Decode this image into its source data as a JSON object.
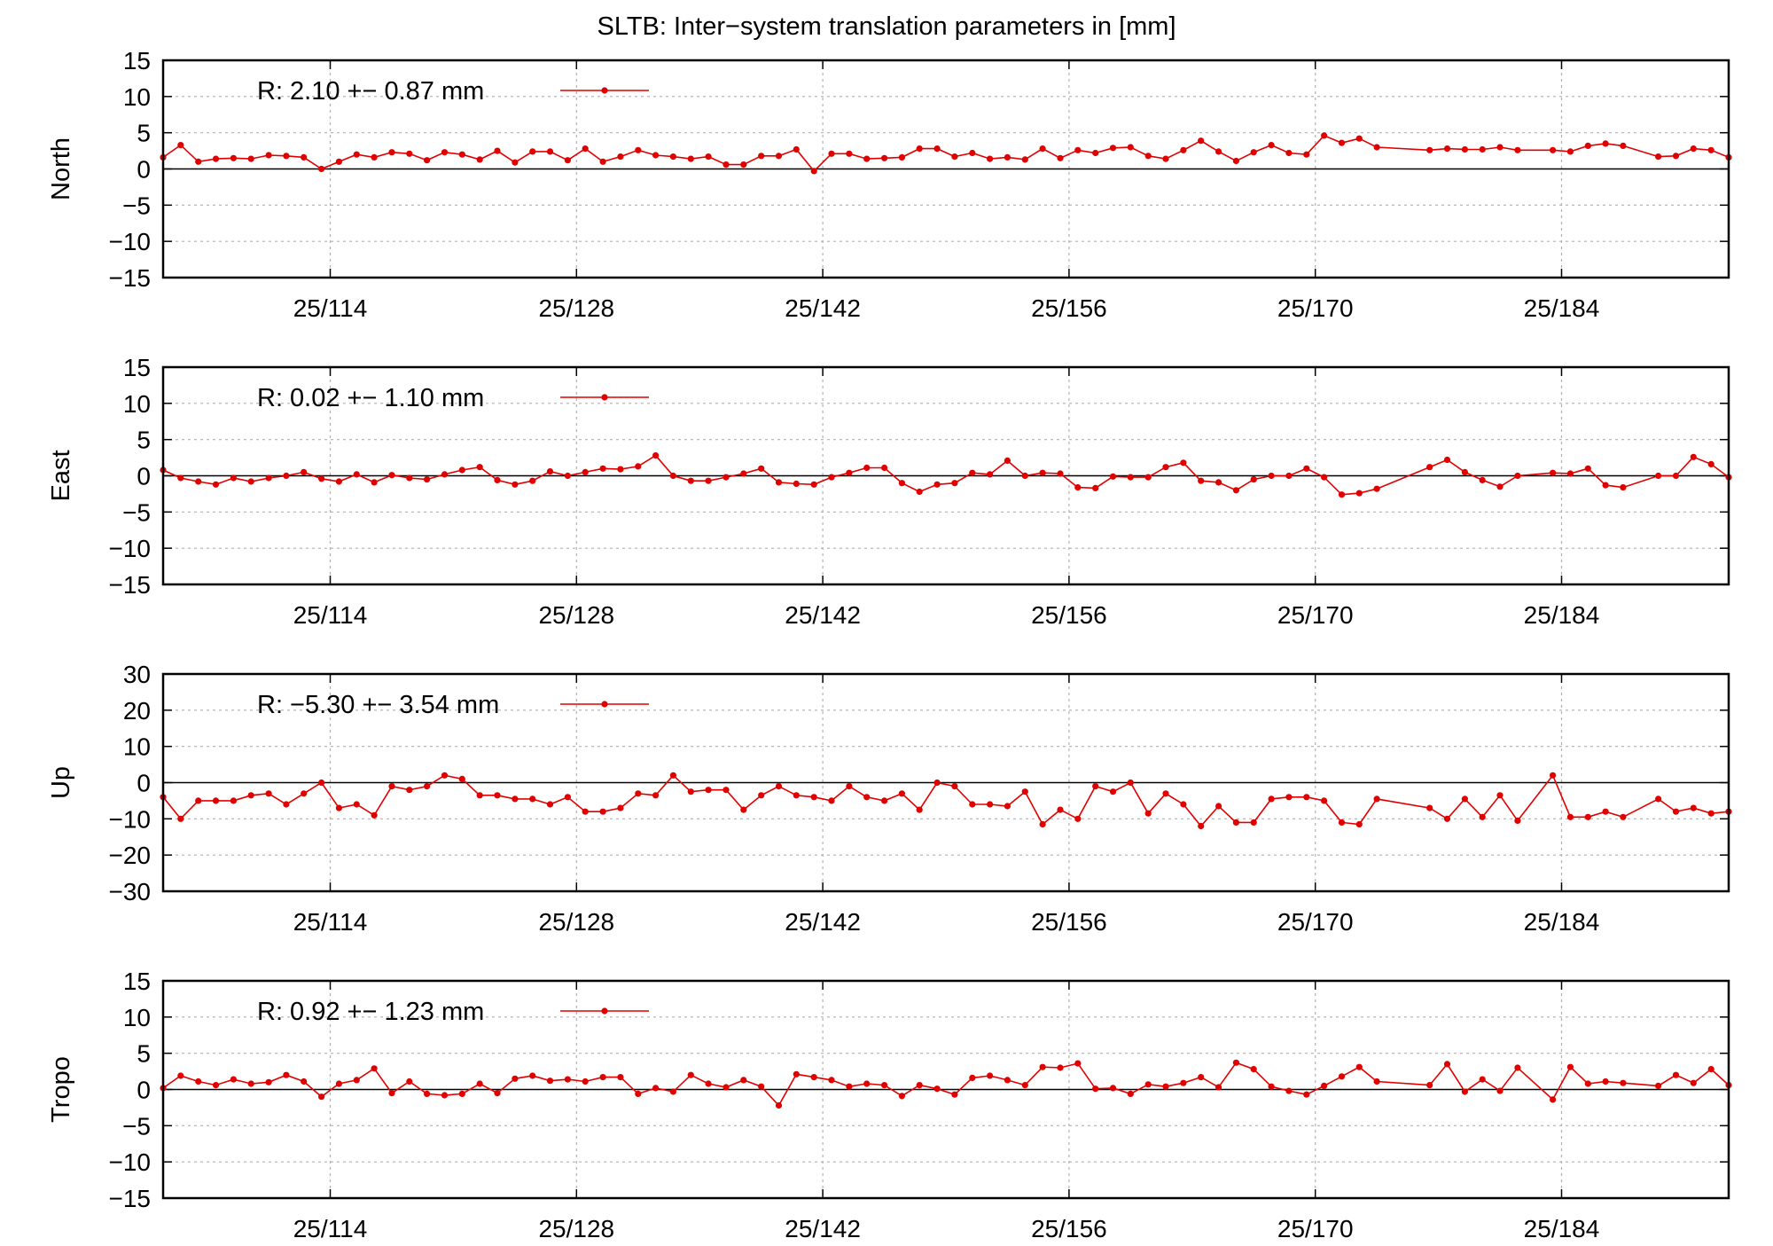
{
  "title": "SLTB: Inter−system translation parameters in [mm]",
  "chart_data": [
    {
      "type": "line",
      "ylabel": "North",
      "ylim": [
        -15,
        15
      ],
      "yticks": [
        15,
        10,
        5,
        0,
        -5,
        -10,
        -15
      ],
      "ytick_labels": [
        "15",
        "10",
        "5",
        "0",
        "−5",
        "−10",
        "−15"
      ],
      "xlim": [
        104.5,
        193.5
      ],
      "xticks": [
        114,
        128,
        142,
        156,
        170,
        184
      ],
      "xtick_labels": [
        "25/114",
        "25/128",
        "25/142",
        "25/156",
        "25/170",
        "25/184"
      ],
      "grid": true,
      "legend_position": "top-left",
      "series_color": "#e00000",
      "series": [
        {
          "name": "R:   2.10 +− 0.87 mm",
          "x": [
            104.5,
            105.5,
            106.5,
            107.5,
            108.5,
            109.5,
            110.5,
            111.5,
            112.5,
            113.5,
            114.5,
            115.5,
            116.5,
            117.5,
            118.5,
            119.5,
            120.5,
            121.5,
            122.5,
            123.5,
            124.5,
            125.5,
            126.5,
            127.5,
            128.5,
            129.5,
            130.5,
            131.5,
            132.5,
            133.5,
            134.5,
            135.5,
            136.5,
            137.5,
            138.5,
            139.5,
            140.5,
            141.5,
            142.5,
            143.5,
            144.5,
            145.5,
            146.5,
            147.5,
            148.5,
            149.5,
            150.5,
            151.5,
            152.5,
            153.5,
            154.5,
            155.5,
            156.5,
            157.5,
            158.5,
            159.5,
            160.5,
            161.5,
            162.5,
            163.5,
            164.5,
            165.5,
            166.5,
            167.5,
            168.5,
            169.5,
            170.5,
            171.5,
            172.5,
            173.5,
            176.5,
            177.5,
            178.5,
            179.5,
            180.5,
            181.5,
            183.5,
            184.5,
            185.5,
            186.5,
            187.5,
            189.5,
            190.5,
            191.5,
            192.5,
            193.5
          ],
          "values": [
            1.6,
            3.3,
            1.0,
            1.4,
            1.5,
            1.4,
            1.9,
            1.8,
            1.6,
            0.0,
            1.0,
            2.0,
            1.6,
            2.3,
            2.1,
            1.2,
            2.3,
            2.0,
            1.3,
            2.5,
            0.9,
            2.4,
            2.4,
            1.2,
            2.8,
            1.0,
            1.7,
            2.6,
            1.9,
            1.7,
            1.4,
            1.7,
            0.6,
            0.6,
            1.8,
            1.8,
            2.7,
            -0.3,
            2.1,
            2.1,
            1.4,
            1.5,
            1.6,
            2.8,
            2.8,
            1.7,
            2.2,
            1.4,
            1.6,
            1.3,
            2.8,
            1.5,
            2.6,
            2.2,
            2.9,
            3.0,
            1.8,
            1.4,
            2.6,
            3.9,
            2.4,
            1.1,
            2.3,
            3.3,
            2.2,
            2.0,
            4.6,
            3.6,
            4.2,
            3.0,
            2.6,
            2.8,
            2.7,
            2.7,
            3.0,
            2.6,
            2.6,
            2.4,
            3.2,
            3.5,
            3.2,
            1.7,
            1.8,
            2.8,
            2.6,
            1.6
          ]
        }
      ]
    },
    {
      "type": "line",
      "ylabel": "East",
      "ylim": [
        -15,
        15
      ],
      "yticks": [
        15,
        10,
        5,
        0,
        -5,
        -10,
        -15
      ],
      "ytick_labels": [
        "15",
        "10",
        "5",
        "0",
        "−5",
        "−10",
        "−15"
      ],
      "xlim": [
        104.5,
        193.5
      ],
      "xticks": [
        114,
        128,
        142,
        156,
        170,
        184
      ],
      "xtick_labels": [
        "25/114",
        "25/128",
        "25/142",
        "25/156",
        "25/170",
        "25/184"
      ],
      "grid": true,
      "legend_position": "top-left",
      "series_color": "#e00000",
      "series": [
        {
          "name": "R:   0.02 +− 1.10 mm",
          "x": [
            104.5,
            105.5,
            106.5,
            107.5,
            108.5,
            109.5,
            110.5,
            111.5,
            112.5,
            113.5,
            114.5,
            115.5,
            116.5,
            117.5,
            118.5,
            119.5,
            120.5,
            121.5,
            122.5,
            123.5,
            124.5,
            125.5,
            126.5,
            127.5,
            128.5,
            129.5,
            130.5,
            131.5,
            132.5,
            133.5,
            134.5,
            135.5,
            136.5,
            137.5,
            138.5,
            139.5,
            140.5,
            141.5,
            142.5,
            143.5,
            144.5,
            145.5,
            146.5,
            147.5,
            148.5,
            149.5,
            150.5,
            151.5,
            152.5,
            153.5,
            154.5,
            155.5,
            156.5,
            157.5,
            158.5,
            159.5,
            160.5,
            161.5,
            162.5,
            163.5,
            164.5,
            165.5,
            166.5,
            167.5,
            168.5,
            169.5,
            170.5,
            171.5,
            172.5,
            173.5,
            176.5,
            177.5,
            178.5,
            179.5,
            180.5,
            181.5,
            183.5,
            184.5,
            185.5,
            186.5,
            187.5,
            189.5,
            190.5,
            191.5,
            192.5,
            193.5
          ],
          "values": [
            0.8,
            -0.3,
            -0.8,
            -1.2,
            -0.3,
            -0.8,
            -0.3,
            0.0,
            0.5,
            -0.4,
            -0.8,
            0.2,
            -0.9,
            0.1,
            -0.3,
            -0.5,
            0.2,
            0.8,
            1.2,
            -0.6,
            -1.2,
            -0.7,
            0.6,
            0.0,
            0.5,
            1.0,
            0.9,
            1.3,
            2.8,
            0.0,
            -0.7,
            -0.7,
            -0.2,
            0.3,
            1.0,
            -0.9,
            -1.1,
            -1.2,
            -0.2,
            0.4,
            1.1,
            1.1,
            -1.0,
            -2.2,
            -1.2,
            -1.0,
            0.4,
            0.2,
            2.1,
            0.0,
            0.4,
            0.3,
            -1.6,
            -1.7,
            -0.1,
            -0.2,
            -0.2,
            1.2,
            1.8,
            -0.7,
            -0.9,
            -2.0,
            -0.5,
            0.0,
            0.0,
            1.0,
            -0.2,
            -2.6,
            -2.4,
            -1.8,
            1.2,
            2.2,
            0.5,
            -0.6,
            -1.5,
            0.0,
            0.4,
            0.3,
            1.0,
            -1.3,
            -1.6,
            0.0,
            0.0,
            2.6,
            1.6,
            -0.2
          ]
        }
      ]
    },
    {
      "type": "line",
      "ylabel": "Up",
      "ylim": [
        -30,
        30
      ],
      "yticks": [
        30,
        20,
        10,
        0,
        -10,
        -20,
        -30
      ],
      "ytick_labels": [
        "30",
        "20",
        "10",
        "0",
        "−10",
        "−20",
        "−30"
      ],
      "xlim": [
        104.5,
        193.5
      ],
      "xticks": [
        114,
        128,
        142,
        156,
        170,
        184
      ],
      "xtick_labels": [
        "25/114",
        "25/128",
        "25/142",
        "25/156",
        "25/170",
        "25/184"
      ],
      "grid": true,
      "legend_position": "top-left",
      "series_color": "#e00000",
      "series": [
        {
          "name": "R:  −5.30 +− 3.54 mm",
          "x": [
            104.5,
            105.5,
            106.5,
            107.5,
            108.5,
            109.5,
            110.5,
            111.5,
            112.5,
            113.5,
            114.5,
            115.5,
            116.5,
            117.5,
            118.5,
            119.5,
            120.5,
            121.5,
            122.5,
            123.5,
            124.5,
            125.5,
            126.5,
            127.5,
            128.5,
            129.5,
            130.5,
            131.5,
            132.5,
            133.5,
            134.5,
            135.5,
            136.5,
            137.5,
            138.5,
            139.5,
            140.5,
            141.5,
            142.5,
            143.5,
            144.5,
            145.5,
            146.5,
            147.5,
            148.5,
            149.5,
            150.5,
            151.5,
            152.5,
            153.5,
            154.5,
            155.5,
            156.5,
            157.5,
            158.5,
            159.5,
            160.5,
            161.5,
            162.5,
            163.5,
            164.5,
            165.5,
            166.5,
            167.5,
            168.5,
            169.5,
            170.5,
            171.5,
            172.5,
            173.5,
            176.5,
            177.5,
            178.5,
            179.5,
            180.5,
            181.5,
            183.5,
            184.5,
            185.5,
            186.5,
            187.5,
            189.5,
            190.5,
            191.5,
            192.5,
            193.5
          ],
          "values": [
            -4,
            -10,
            -5,
            -5,
            -5,
            -3.5,
            -3,
            -6,
            -3,
            0,
            -7,
            -6,
            -9,
            -1,
            -2,
            -1,
            2,
            1,
            -3.5,
            -3.5,
            -4.5,
            -4.5,
            -6,
            -4,
            -8,
            -8,
            -7,
            -3,
            -3.5,
            2,
            -2.5,
            -2,
            -2,
            -7.5,
            -3.5,
            -1,
            -3.5,
            -4,
            -5,
            -1,
            -4,
            -5,
            -3,
            -7.5,
            0,
            -1,
            -6,
            -6,
            -6.5,
            -2.5,
            -11.5,
            -7.5,
            -10,
            -1,
            -2.5,
            0,
            -8.5,
            -3,
            -6,
            -12,
            -6.5,
            -11,
            -11,
            -4.5,
            -4,
            -4,
            -5,
            -11,
            -11.5,
            -4.5,
            -7,
            -10,
            -4.5,
            -9.5,
            -3.5,
            -10.5,
            2,
            -9.5,
            -9.5,
            -8,
            -9.5,
            -4.5,
            -8,
            -7,
            -8.5,
            -8
          ]
        }
      ]
    },
    {
      "type": "line",
      "ylabel": "Tropo",
      "ylim": [
        -15,
        15
      ],
      "yticks": [
        15,
        10,
        5,
        0,
        -5,
        -10,
        -15
      ],
      "ytick_labels": [
        "15",
        "10",
        "5",
        "0",
        "−5",
        "−10",
        "−15"
      ],
      "xlim": [
        104.5,
        193.5
      ],
      "xticks": [
        114,
        128,
        142,
        156,
        170,
        184
      ],
      "xtick_labels": [
        "25/114",
        "25/128",
        "25/142",
        "25/156",
        "25/170",
        "25/184"
      ],
      "grid": true,
      "legend_position": "top-left",
      "series_color": "#e00000",
      "series": [
        {
          "name": "R:   0.92 +− 1.23 mm",
          "x": [
            104.5,
            105.5,
            106.5,
            107.5,
            108.5,
            109.5,
            110.5,
            111.5,
            112.5,
            113.5,
            114.5,
            115.5,
            116.5,
            117.5,
            118.5,
            119.5,
            120.5,
            121.5,
            122.5,
            123.5,
            124.5,
            125.5,
            126.5,
            127.5,
            128.5,
            129.5,
            130.5,
            131.5,
            132.5,
            133.5,
            134.5,
            135.5,
            136.5,
            137.5,
            138.5,
            139.5,
            140.5,
            141.5,
            142.5,
            143.5,
            144.5,
            145.5,
            146.5,
            147.5,
            148.5,
            149.5,
            150.5,
            151.5,
            152.5,
            153.5,
            154.5,
            155.5,
            156.5,
            157.5,
            158.5,
            159.5,
            160.5,
            161.5,
            162.5,
            163.5,
            164.5,
            165.5,
            166.5,
            167.5,
            168.5,
            169.5,
            170.5,
            171.5,
            172.5,
            173.5,
            176.5,
            177.5,
            178.5,
            179.5,
            180.5,
            181.5,
            183.5,
            184.5,
            185.5,
            186.5,
            187.5,
            189.5,
            190.5,
            191.5,
            192.5,
            193.5
          ],
          "values": [
            0.2,
            1.9,
            1.1,
            0.6,
            1.4,
            0.8,
            1.0,
            2.0,
            1.1,
            -1.0,
            0.8,
            1.3,
            2.9,
            -0.5,
            1.1,
            -0.6,
            -0.8,
            -0.6,
            0.8,
            -0.5,
            1.5,
            1.9,
            1.2,
            1.4,
            1.1,
            1.7,
            1.7,
            -0.6,
            0.2,
            -0.3,
            2.0,
            0.8,
            0.3,
            1.3,
            0.4,
            -2.2,
            2.1,
            1.7,
            1.3,
            0.4,
            0.8,
            0.6,
            -0.9,
            0.6,
            0.1,
            -0.7,
            1.6,
            1.9,
            1.3,
            0.6,
            3.1,
            3.0,
            3.6,
            0.1,
            0.2,
            -0.6,
            0.7,
            0.4,
            0.9,
            1.7,
            0.3,
            3.7,
            2.8,
            0.4,
            -0.2,
            -0.7,
            0.5,
            1.8,
            3.1,
            1.1,
            0.6,
            3.5,
            -0.3,
            1.4,
            -0.2,
            3.0,
            -1.4,
            3.1,
            0.8,
            1.1,
            0.9,
            0.5,
            2.0,
            0.9,
            2.8,
            0.6
          ]
        }
      ]
    }
  ]
}
